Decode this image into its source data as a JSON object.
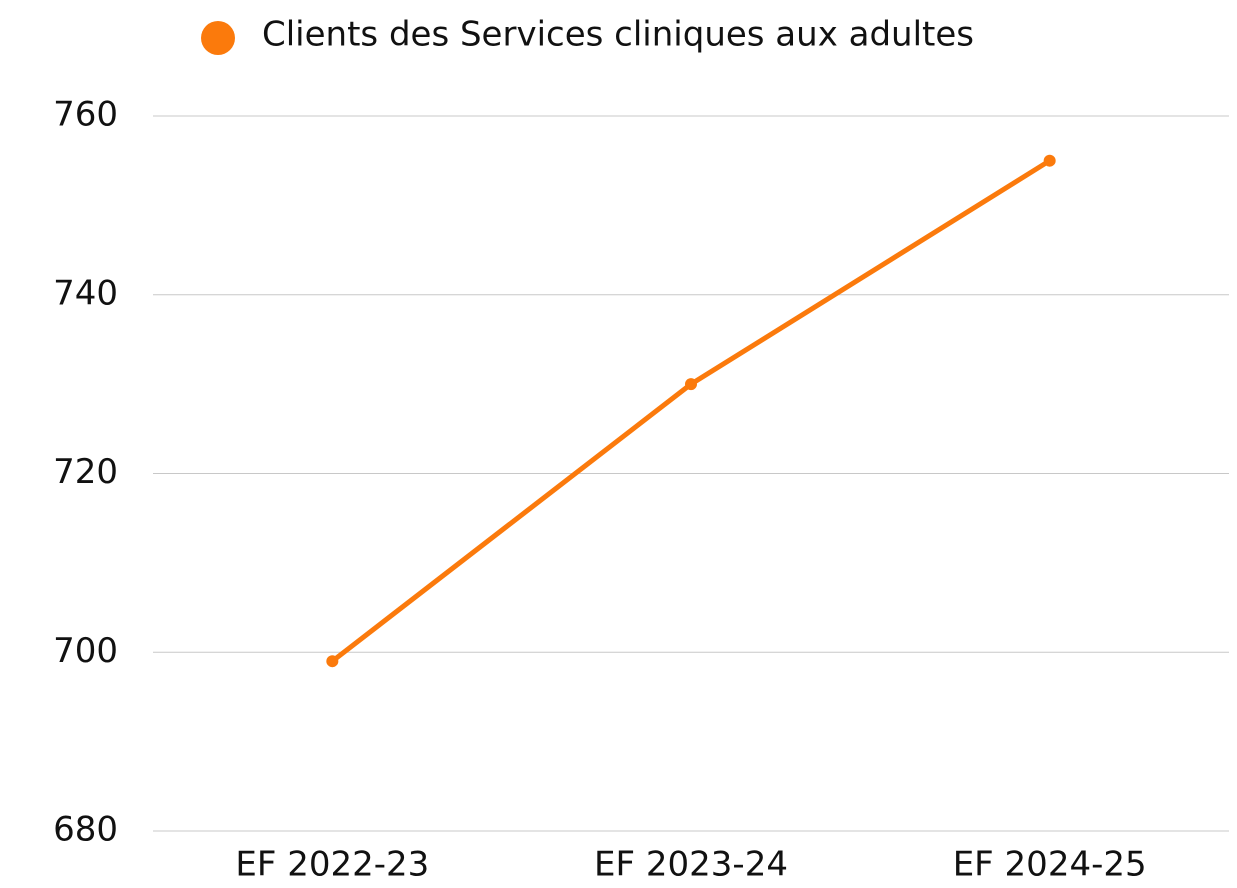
{
  "chart_data": {
    "type": "line",
    "categories": [
      "EF 2022-23",
      "EF 2023-24",
      "EF 2024-25"
    ],
    "series": [
      {
        "name": "Clients des Services cliniques aux adultes",
        "color": "#fb7a0c",
        "values": [
          699,
          730,
          755
        ]
      }
    ],
    "ylim": [
      680,
      760
    ],
    "yticks": [
      680,
      700,
      720,
      740,
      760
    ],
    "grid": true,
    "legend": "top"
  }
}
